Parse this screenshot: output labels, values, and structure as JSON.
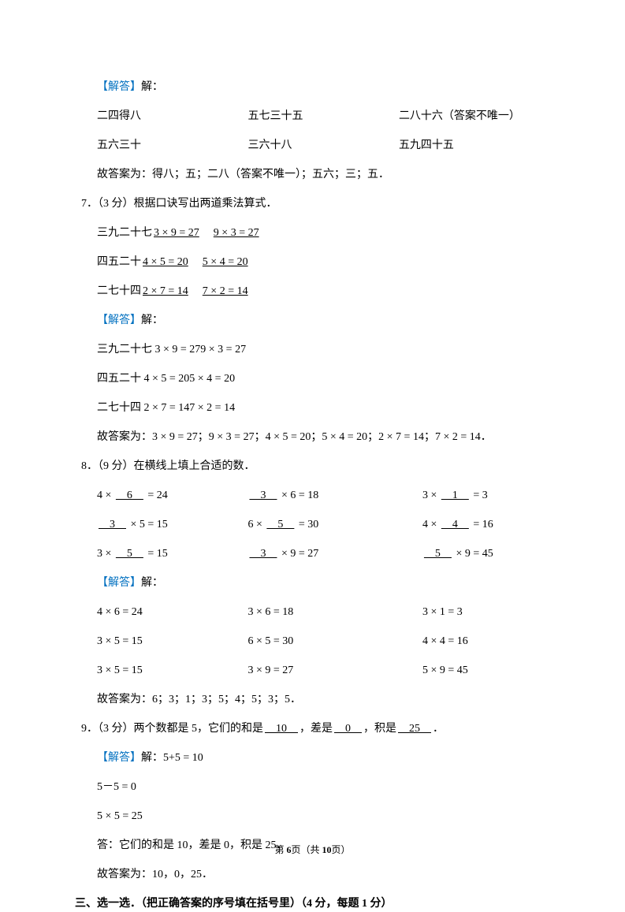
{
  "colors": {
    "answer_blue": "#0070c0",
    "text": "#000000",
    "bg": "#ffffff"
  },
  "answer_label": "【解答】",
  "jie_suffix": "解：",
  "q6_grid": {
    "r1c1": "二四得八",
    "r1c2": "五七三十五",
    "r1c3": "二八十六（答案不唯一）",
    "r2c1": "五六三十",
    "r2c2": "三六十八",
    "r2c3": "五九四十五"
  },
  "q6_conclusion": "故答案为：得八；五；二八（答案不唯一）；五六；三；五．",
  "q7": {
    "number": "7．（3 分）",
    "title": "根据口诀写出两道乘法算式．",
    "rows": [
      {
        "label": "三九二十七",
        "a": "3 × 9 = 27",
        "b": "9 × 3 = 27"
      },
      {
        "label": "四五二十",
        "a": "4 × 5 = 20",
        "b": "5 × 4 = 20"
      },
      {
        "label": "二七十四",
        "a": "2 × 7 = 14",
        "b": "7 × 2 = 14"
      }
    ],
    "sol1": "三九二十七 3 × 9 = 279 × 3 = 27",
    "sol2": "四五二十 4 × 5 = 205 × 4 = 20",
    "sol3": "二七十四 2 × 7 = 147 × 2 = 14",
    "conclusion": "故答案为：3 × 9 = 27；9 × 3 = 27；4 × 5 = 20；5 × 4 = 20；2 × 7 = 14；7 × 2 = 14．"
  },
  "q8": {
    "number": "8．（9 分）",
    "title": "在横线上填上合适的数．",
    "r1c1_a": "4 × ",
    "r1c1_u": "　6　",
    "r1c1_b": " = 24",
    "r1c2_u": "　3　",
    "r1c2_b": " × 6 = 18",
    "r1c3_a": "3 × ",
    "r1c3_u": "　1　",
    "r1c3_b": " = 3",
    "r2c1_u": "　3　",
    "r2c1_b": " × 5 = 15",
    "r2c2_a": "6 × ",
    "r2c2_u": "　5　",
    "r2c2_b": " = 30",
    "r2c3_a": "4 × ",
    "r2c3_u": "　4　",
    "r2c3_b": " = 16",
    "r3c1_a": "3 × ",
    "r3c1_u": "　5　",
    "r3c1_b": " = 15",
    "r3c2_u": "　3　",
    "r3c2_b": " × 9 = 27",
    "r3c3_u": "　5　",
    "r3c3_b": " × 9 = 45",
    "sol_r1c1": "4 × 6 = 24",
    "sol_r1c2": "3 × 6 = 18",
    "sol_r1c3": "3 × 1 = 3",
    "sol_r2c1": "3 × 5 = 15",
    "sol_r2c2": "6 × 5 = 30",
    "sol_r2c3": "4 × 4 = 16",
    "sol_r3c1": "3 × 5 = 15",
    "sol_r3c2": "3 × 9 = 27",
    "sol_r3c3": "5 × 9 = 45",
    "conclusion": "故答案为：6；3；1；3；5；4；5；3；5．"
  },
  "q9": {
    "number": "9．（3 分）",
    "title_a": "两个数都是 5，它们的和是",
    "u1": "　10　",
    "title_b": "，差是",
    "u2": "　0　",
    "title_c": "，积是",
    "u3": "　25　",
    "title_d": "．",
    "sol0": "5+5 = 10",
    "sol1": "5－5 = 0",
    "sol2": "5 × 5 = 25",
    "sol3": "答：它们的和是 10，差是 0，积是 25．",
    "conclusion": "故答案为：10，0，25．"
  },
  "section3": "三、选一选．（把正确答案的序号填在括号里）（4 分，每题 1 分）",
  "footer_a": "第 ",
  "footer_b": "6",
  "footer_c": "页（共 ",
  "footer_d": "10",
  "footer_e": "页）"
}
